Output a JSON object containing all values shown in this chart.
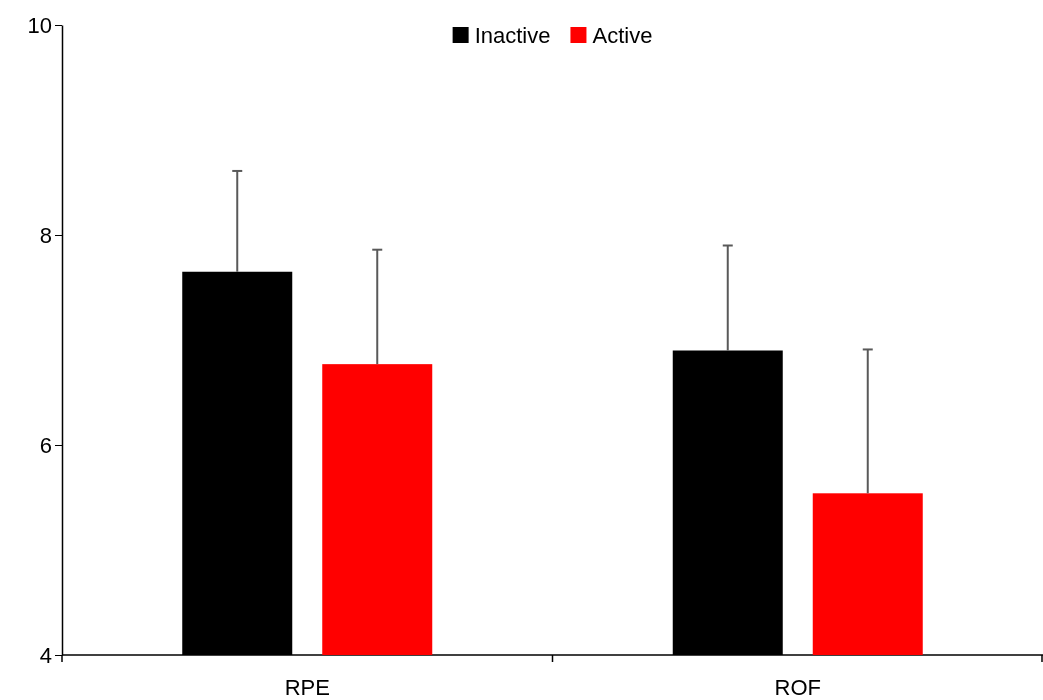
{
  "chart_data": {
    "type": "bar",
    "categories": [
      "RPE",
      "ROF"
    ],
    "series": [
      {
        "name": "Inactive",
        "color": "#000000",
        "values": [
          7.65,
          6.9
        ],
        "errors": [
          [
            7.65,
            8.61
          ],
          [
            6.9,
            7.9
          ]
        ]
      },
      {
        "name": "Active",
        "color": "#ff0000",
        "values": [
          6.77,
          5.54
        ],
        "errors": [
          [
            6.77,
            7.86
          ],
          [
            5.54,
            6.91
          ]
        ]
      }
    ],
    "ylim": [
      4,
      10
    ],
    "yticks": [
      4,
      6,
      8,
      10
    ],
    "grid": false,
    "legend": "top"
  }
}
